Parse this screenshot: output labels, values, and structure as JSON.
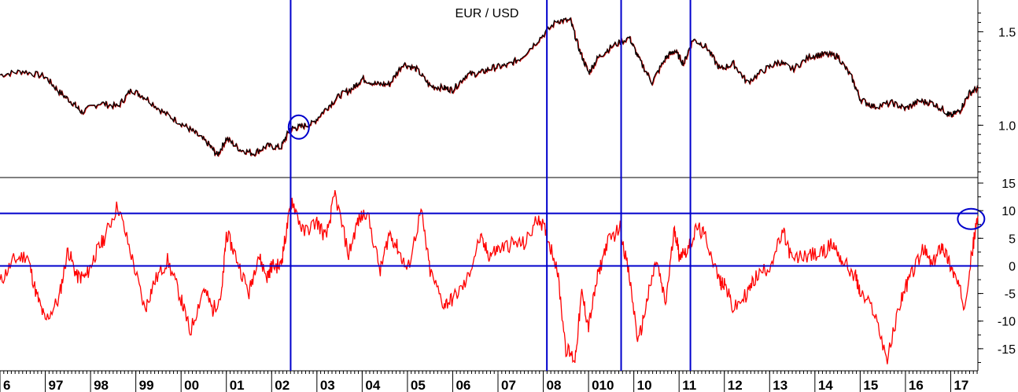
{
  "colors": {
    "price_line": "#000000",
    "price_shadow": "#cc0000",
    "oscillator_line": "#ff0000",
    "reference_lines": "#0000cc",
    "axis": "#000000"
  },
  "chart_data": [
    {
      "type": "line",
      "title": "EUR / USD",
      "x_domain": [
        1996.0,
        2017.6
      ],
      "ylim": [
        0.72,
        1.67
      ],
      "y_ticks": [
        {
          "value": 1.5,
          "label": "1.5"
        },
        {
          "value": 1.0,
          "label": "1.0"
        }
      ],
      "series": [
        {
          "x": [
            1996.0,
            1996.5,
            1997.0,
            1997.3,
            1997.6,
            1997.8,
            1998.2,
            1998.6,
            1998.9,
            1999.2,
            1999.6,
            2000.0,
            2000.3,
            2000.6,
            2000.8,
            2001.0,
            2001.3,
            2001.6,
            2001.9,
            2002.2,
            2002.4,
            2002.6,
            2002.9,
            2003.2,
            2003.5,
            2003.8,
            2004.0,
            2004.3,
            2004.6,
            2004.9,
            2005.2,
            2005.5,
            2005.8,
            2006.0,
            2006.3,
            2006.6,
            2006.9,
            2007.2,
            2007.5,
            2007.9,
            2008.3,
            2008.6,
            2008.8,
            2009.0,
            2009.2,
            2009.5,
            2009.9,
            2010.1,
            2010.4,
            2010.7,
            2010.9,
            2011.1,
            2011.3,
            2011.6,
            2011.9,
            2012.2,
            2012.5,
            2012.9,
            2013.2,
            2013.5,
            2013.9,
            2014.2,
            2014.5,
            2014.8,
            2015.0,
            2015.3,
            2015.7,
            2016.0,
            2016.3,
            2016.6,
            2016.9,
            2017.0,
            2017.2,
            2017.4,
            2017.6
          ],
          "y": [
            1.27,
            1.29,
            1.26,
            1.18,
            1.12,
            1.07,
            1.12,
            1.1,
            1.19,
            1.15,
            1.07,
            1.01,
            0.96,
            0.9,
            0.84,
            0.93,
            0.87,
            0.85,
            0.89,
            0.88,
            0.98,
            0.99,
            1.01,
            1.09,
            1.16,
            1.2,
            1.25,
            1.22,
            1.22,
            1.33,
            1.3,
            1.21,
            1.2,
            1.19,
            1.27,
            1.28,
            1.31,
            1.32,
            1.36,
            1.46,
            1.56,
            1.56,
            1.4,
            1.28,
            1.36,
            1.42,
            1.47,
            1.36,
            1.23,
            1.36,
            1.4,
            1.33,
            1.46,
            1.42,
            1.3,
            1.33,
            1.23,
            1.3,
            1.34,
            1.3,
            1.37,
            1.38,
            1.37,
            1.26,
            1.14,
            1.1,
            1.12,
            1.09,
            1.13,
            1.12,
            1.07,
            1.05,
            1.08,
            1.17,
            1.2
          ]
        }
      ]
    },
    {
      "type": "line",
      "x_domain": [
        1996.0,
        2017.6
      ],
      "ylim": [
        -19,
        16
      ],
      "y_ticks": [
        {
          "value": 15,
          "label": "15"
        },
        {
          "value": 10,
          "label": "10"
        },
        {
          "value": 5,
          "label": "5"
        },
        {
          "value": 0,
          "label": "0"
        },
        {
          "value": -5,
          "label": "-5"
        },
        {
          "value": -10,
          "label": "-10"
        },
        {
          "value": -15,
          "label": "-15"
        }
      ],
      "horizontal_reference_lines": [
        9.5,
        0
      ],
      "series": [
        {
          "x": [
            1996.0,
            1996.3,
            1996.6,
            1996.8,
            1997.0,
            1997.3,
            1997.5,
            1997.7,
            1997.9,
            1998.1,
            1998.3,
            1998.6,
            1998.9,
            1999.2,
            1999.4,
            1999.7,
            2000.0,
            2000.2,
            2000.5,
            2000.7,
            2000.9,
            2001.0,
            2001.2,
            2001.5,
            2001.7,
            2001.9,
            2002.0,
            2002.2,
            2002.3,
            2002.45,
            2002.7,
            2003.0,
            2003.2,
            2003.4,
            2003.7,
            2003.9,
            2004.1,
            2004.4,
            2004.6,
            2004.8,
            2005.0,
            2005.3,
            2005.5,
            2005.8,
            2006.0,
            2006.3,
            2006.6,
            2006.8,
            2007.0,
            2007.3,
            2007.6,
            2007.9,
            2008.1,
            2008.3,
            2008.5,
            2008.7,
            2008.85,
            2009.0,
            2009.2,
            2009.4,
            2009.7,
            2009.9,
            2010.1,
            2010.3,
            2010.5,
            2010.7,
            2010.9,
            2011.0,
            2011.2,
            2011.4,
            2011.6,
            2011.9,
            2012.0,
            2012.2,
            2012.5,
            2012.7,
            2013.0,
            2013.3,
            2013.5,
            2013.8,
            2014.1,
            2014.4,
            2014.6,
            2014.9,
            2015.0,
            2015.3,
            2015.6,
            2015.9,
            2016.1,
            2016.4,
            2016.6,
            2016.8,
            2016.95,
            2017.1,
            2017.3,
            2017.5,
            2017.6
          ],
          "y": [
            -3,
            1,
            2,
            -5,
            -10,
            -6,
            3,
            -2,
            -2,
            2,
            5,
            11,
            2,
            -8,
            -3,
            1,
            -6,
            -12,
            -4,
            -8,
            -5,
            6,
            2,
            -5,
            2,
            -2,
            0,
            0,
            5,
            12,
            6,
            8,
            5,
            13,
            2,
            8,
            10,
            -1,
            6,
            3,
            -1,
            10,
            -1,
            -7,
            -6,
            -3,
            5,
            2,
            3,
            4,
            4,
            9,
            5,
            0,
            -15,
            -17,
            -5,
            -11,
            -2,
            4,
            7,
            -2,
            -14,
            -6,
            1,
            -7,
            7,
            2,
            3,
            7,
            5,
            -3,
            -3,
            -8,
            -5,
            -2,
            0,
            6,
            1,
            2,
            2,
            4,
            1,
            -2,
            -5,
            -8,
            -17,
            -6,
            -2,
            3,
            0,
            4,
            1,
            -2,
            -7,
            4,
            9
          ]
        }
      ]
    }
  ],
  "vertical_markers": [
    2002.42,
    2008.08,
    2009.72,
    2011.25
  ],
  "x_axis_ticks": [
    {
      "x": 1996.0,
      "label": "6"
    },
    {
      "x": 1997.0,
      "label": "97"
    },
    {
      "x": 1998.0,
      "label": "98"
    },
    {
      "x": 1999.0,
      "label": "99"
    },
    {
      "x": 2000.0,
      "label": "00"
    },
    {
      "x": 2001.0,
      "label": "01"
    },
    {
      "x": 2002.0,
      "label": "02"
    },
    {
      "x": 2003.0,
      "label": "03"
    },
    {
      "x": 2004.0,
      "label": "04"
    },
    {
      "x": 2005.0,
      "label": "05"
    },
    {
      "x": 2006.0,
      "label": "06"
    },
    {
      "x": 2007.0,
      "label": "07"
    },
    {
      "x": 2008.0,
      "label": "08"
    },
    {
      "x": 2009.0,
      "label": "010"
    },
    {
      "x": 2010.0,
      "label": "10"
    },
    {
      "x": 2011.0,
      "label": "11"
    },
    {
      "x": 2012.0,
      "label": "12"
    },
    {
      "x": 2013.0,
      "label": "13"
    },
    {
      "x": 2014.0,
      "label": "14"
    },
    {
      "x": 2015.0,
      "label": "15"
    },
    {
      "x": 2016.0,
      "label": "16"
    },
    {
      "x": 2017.0,
      "label": "17"
    }
  ],
  "highlight_circles": [
    {
      "panel": "price",
      "x": 2002.6,
      "y": 0.99
    },
    {
      "panel": "oscillator",
      "x": 2017.45,
      "y": 8.5
    }
  ]
}
